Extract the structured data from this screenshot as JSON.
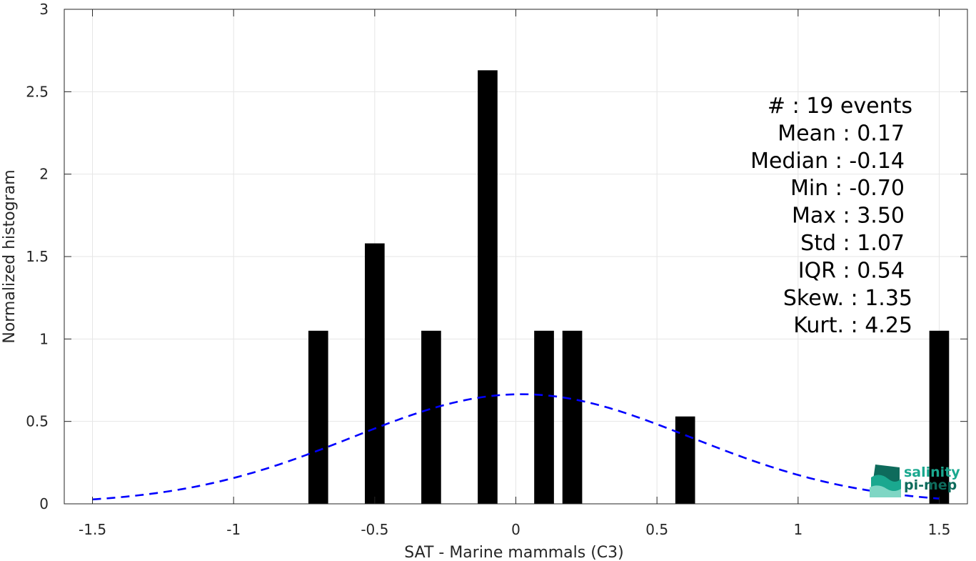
{
  "chart_data": {
    "type": "bar",
    "xlabel": "SAT - Marine mammals (C3)",
    "ylabel": "Normalized histogram",
    "xlim": [
      -1.6,
      1.6
    ],
    "ylim": [
      0,
      3
    ],
    "xticks": [
      -1.5,
      -1,
      -0.5,
      0,
      0.5,
      1,
      1.5
    ],
    "xtick_labels": [
      "-1.5",
      "-1",
      "-0.5",
      "0",
      "0.5",
      "1",
      "1.5"
    ],
    "yticks": [
      0,
      0.5,
      1,
      1.5,
      2,
      2.5,
      3
    ],
    "ytick_labels": [
      "0",
      "0.5",
      "1",
      "1.5",
      "2",
      "2.5",
      "3"
    ],
    "grid": true,
    "bar_width": 0.07,
    "bars": [
      {
        "x": -0.7,
        "value": 1.05
      },
      {
        "x": -0.5,
        "value": 1.58
      },
      {
        "x": -0.3,
        "value": 1.05
      },
      {
        "x": -0.1,
        "value": 2.63
      },
      {
        "x": 0.1,
        "value": 1.05
      },
      {
        "x": 0.2,
        "value": 1.05
      },
      {
        "x": 0.6,
        "value": 0.53
      },
      {
        "x": 1.5,
        "value": 1.05
      }
    ],
    "bar_color": "#000000",
    "fit_curve": {
      "type": "normal",
      "mean": 0.02,
      "std": 0.6,
      "x_range": [
        -1.5,
        1.5
      ],
      "color": "#0000ff",
      "style": "dashed"
    },
    "stats": [
      {
        "label": "#",
        "sep": " : ",
        "value": "19 events"
      },
      {
        "label": "Mean",
        "sep": " : ",
        "value": "0.17"
      },
      {
        "label": "Median",
        "sep": " : ",
        "value": "-0.14"
      },
      {
        "label": "Min",
        "sep": " : ",
        "value": "-0.70"
      },
      {
        "label": "Max",
        "sep": " : ",
        "value": "3.50"
      },
      {
        "label": "Std",
        "sep": " : ",
        "value": "1.07"
      },
      {
        "label": "IQR",
        "sep": " : ",
        "value": "0.54"
      },
      {
        "label": "Skew.",
        "sep": " : ",
        "value": "1.35"
      },
      {
        "label": "Kurt.",
        "sep": " : ",
        "value": "4.25"
      }
    ]
  },
  "logo": {
    "line1": "salinity",
    "line2": "pi-mep",
    "icon": "wave-logo-icon",
    "colors": {
      "primary": "#1aa88f",
      "dark": "#0e6b5c",
      "light": "#7fd6c4"
    }
  }
}
